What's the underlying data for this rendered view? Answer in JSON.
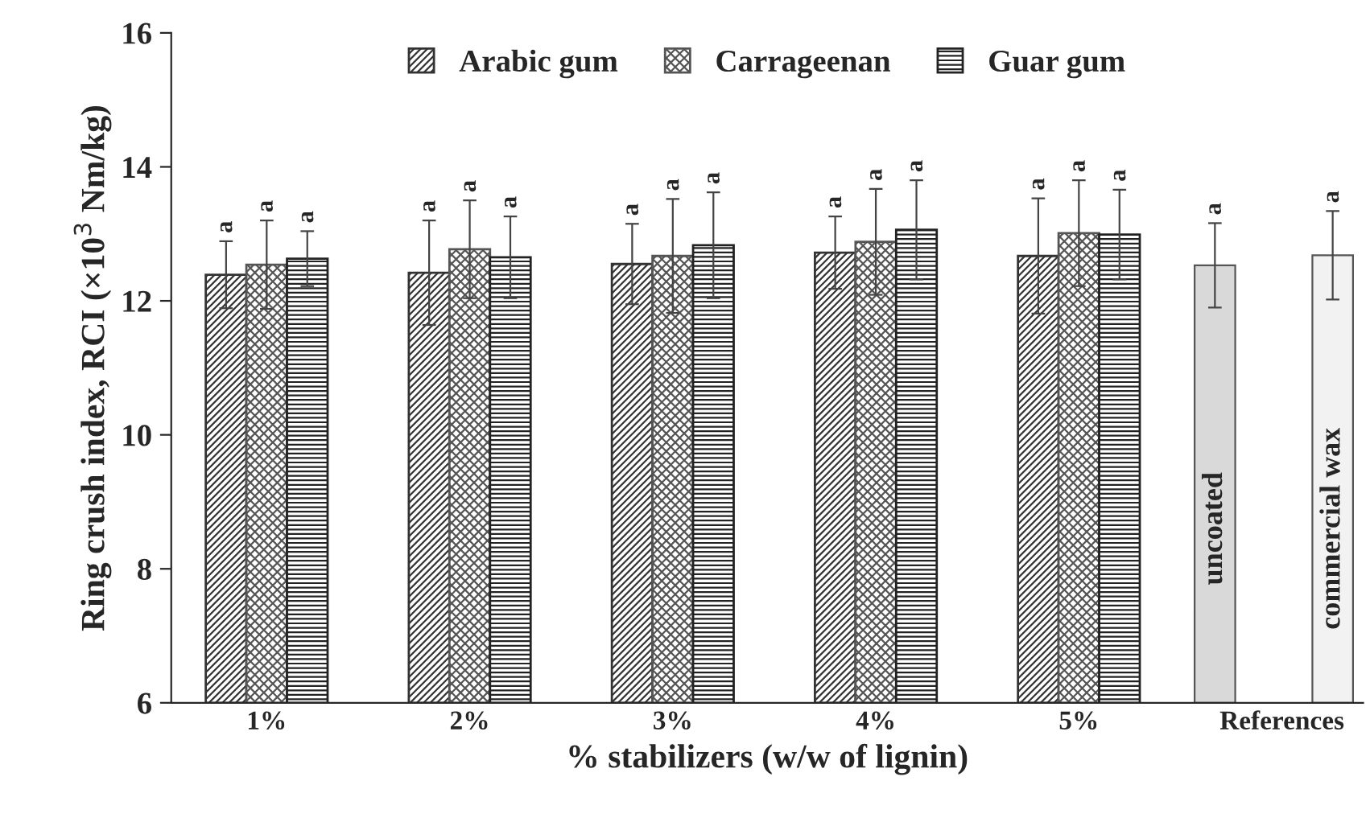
{
  "chart_data": {
    "type": "bar",
    "xlabel": "% stabilizers (w/w of lignin)",
    "ylabel": "Ring crush index, RCI (×10$^{3}$ Nm/kg)",
    "categories": [
      "1%",
      "2%",
      "3%",
      "4%",
      "5%",
      "References"
    ],
    "series": [
      {
        "name": "Arabic gum",
        "color": "#333333",
        "values": [
          12.39,
          12.42,
          12.55,
          12.72,
          12.67,
          null
        ],
        "errors": [
          0.5,
          0.78,
          0.6,
          0.54,
          0.86,
          null
        ],
        "value_labels": [
          "a",
          "a",
          "a",
          "a",
          "a",
          null
        ]
      },
      {
        "name": "Carrageenan",
        "color": "#555555",
        "values": [
          12.54,
          12.77,
          12.67,
          12.88,
          13.01,
          null
        ],
        "errors": [
          0.66,
          0.73,
          0.85,
          0.79,
          0.79,
          null
        ],
        "value_labels": [
          "a",
          "a",
          "a",
          "a",
          "a",
          null
        ]
      },
      {
        "name": "Guar gum",
        "color": "#222222",
        "values": [
          12.63,
          12.65,
          12.83,
          13.06,
          12.99,
          null
        ],
        "errors": [
          0.41,
          0.61,
          0.79,
          0.74,
          0.67,
          null
        ],
        "value_labels": [
          "a",
          "a",
          "a",
          "a",
          "a",
          null
        ]
      },
      {
        "name": "uncoated",
        "color": "#d9d9d9",
        "values": [
          null,
          null,
          null,
          null,
          null,
          12.53
        ],
        "errors": [
          null,
          null,
          null,
          null,
          null,
          0.63
        ],
        "value_labels": [
          null,
          null,
          null,
          null,
          null,
          "a"
        ]
      },
      {
        "name": "commercial wax",
        "color": "#f2f2f2",
        "values": [
          null,
          null,
          null,
          null,
          null,
          12.68
        ],
        "errors": [
          null,
          null,
          null,
          null,
          null,
          0.66
        ],
        "value_labels": [
          null,
          null,
          null,
          null,
          null,
          "a"
        ]
      }
    ],
    "ylim": [
      6,
      16
    ],
    "yticks": [
      6,
      8,
      10,
      12,
      14,
      16
    ],
    "grid": false,
    "legend": "top"
  }
}
